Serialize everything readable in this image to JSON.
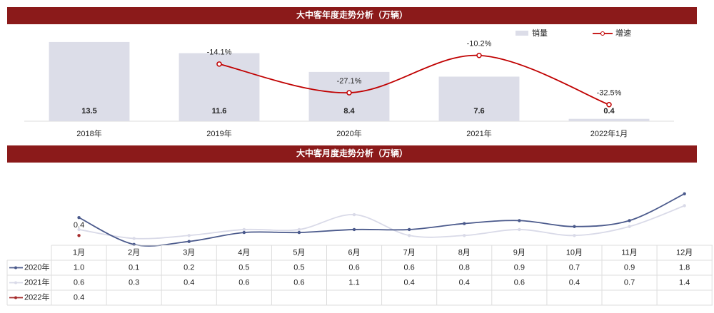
{
  "chart_data": [
    {
      "type": "bar-line",
      "title": "大中客年度走势分析（万辆）",
      "categories": [
        "2018年",
        "2019年",
        "2020年",
        "2021年",
        "2022年1月"
      ],
      "series": [
        {
          "name": "销量",
          "color": "#dcdde8",
          "values": [
            13.5,
            11.6,
            8.4,
            7.6,
            0.4
          ]
        },
        {
          "name": "增速",
          "color": "#c00000",
          "axis": "y2",
          "values": [
            null,
            -14.1,
            -27.1,
            -10.2,
            -32.5
          ],
          "value_labels": [
            null,
            "-14.1%",
            "-27.1%",
            "-10.2%",
            "-32.5%"
          ]
        }
      ],
      "ylim": [
        0,
        15.8
      ],
      "y2lim": [
        -40,
        2
      ],
      "legend": "top-right"
    },
    {
      "type": "line-table",
      "title": "大中客月度走势分析（万辆）",
      "categories": [
        "1月",
        "2月",
        "3月",
        "4月",
        "5月",
        "6月",
        "7月",
        "8月",
        "9月",
        "10月",
        "11月",
        "12月"
      ],
      "series": [
        {
          "name": "2020年",
          "color": "#4b5a8c",
          "values": [
            1.0,
            0.1,
            0.2,
            0.5,
            0.5,
            0.6,
            0.6,
            0.8,
            0.9,
            0.7,
            0.9,
            1.8
          ],
          "value_labels": [
            "1.0",
            "0.1",
            "0.2",
            "0.5",
            "0.5",
            "0.6",
            "0.6",
            "0.8",
            "0.9",
            "0.7",
            "0.9",
            "1.8"
          ]
        },
        {
          "name": "2021年",
          "color": "#d9dae8",
          "values": [
            0.6,
            0.3,
            0.4,
            0.6,
            0.6,
            1.1,
            0.4,
            0.4,
            0.6,
            0.4,
            0.7,
            1.4
          ],
          "value_labels": [
            "0.6",
            "0.3",
            "0.4",
            "0.6",
            "0.6",
            "1.1",
            "0.4",
            "0.4",
            "0.6",
            "0.4",
            "0.7",
            "1.4"
          ]
        },
        {
          "name": "2022年",
          "color": "#a52a2a",
          "values": [
            0.4,
            null,
            null,
            null,
            null,
            null,
            null,
            null,
            null,
            null,
            null,
            null
          ],
          "value_labels": [
            "0.4",
            null,
            null,
            null,
            null,
            null,
            null,
            null,
            null,
            null,
            null,
            null
          ]
        }
      ],
      "ylim": [
        0,
        2.8
      ]
    }
  ]
}
